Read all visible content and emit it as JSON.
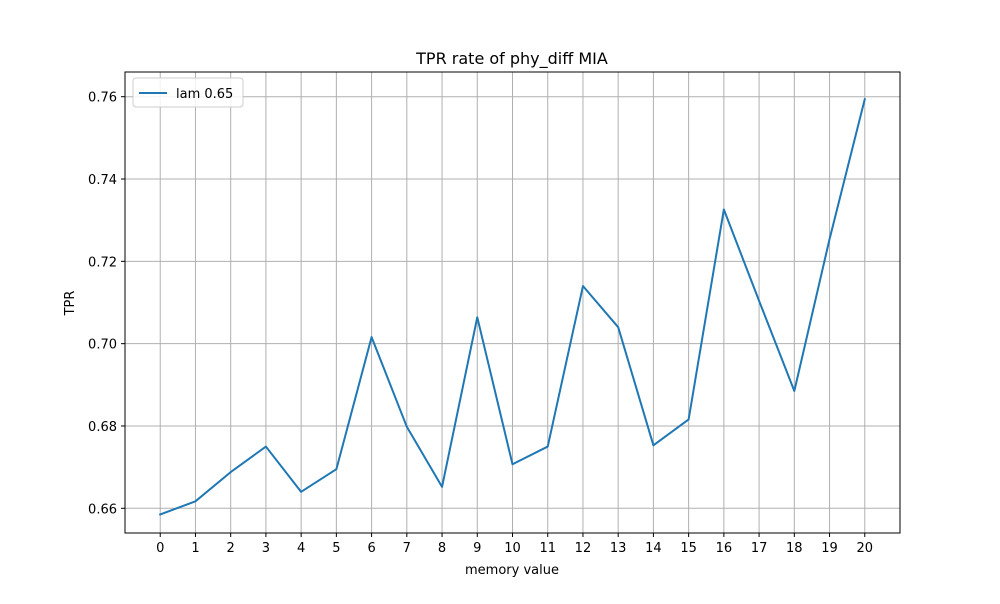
{
  "chart_data": {
    "type": "line",
    "title": "TPR rate of phy_diff MIA",
    "xlabel": "memory value",
    "ylabel": "TPR",
    "x": [
      0,
      1,
      2,
      3,
      4,
      5,
      6,
      7,
      8,
      9,
      10,
      11,
      12,
      13,
      14,
      15,
      16,
      17,
      18,
      19,
      20
    ],
    "xticks": [
      "0",
      "1",
      "2",
      "3",
      "4",
      "5",
      "6",
      "7",
      "8",
      "9",
      "10",
      "11",
      "12",
      "13",
      "14",
      "15",
      "16",
      "17",
      "18",
      "19",
      "20"
    ],
    "yticks": [
      "0.66",
      "0.68",
      "0.70",
      "0.72",
      "0.74",
      "0.76"
    ],
    "ytick_values": [
      0.66,
      0.68,
      0.7,
      0.72,
      0.74,
      0.76
    ],
    "xlim": [
      -1,
      21
    ],
    "ylim": [
      0.654,
      0.766
    ],
    "grid": true,
    "legend_position": "top-left",
    "series": [
      {
        "name": "lam 0.65",
        "color": "#1f77b4",
        "values": [
          0.6585,
          0.6617,
          0.6688,
          0.675,
          0.664,
          0.6695,
          0.7016,
          0.6798,
          0.6652,
          0.7064,
          0.6707,
          0.675,
          0.714,
          0.704,
          0.6753,
          0.6816,
          0.7326,
          0.7104,
          0.6885,
          0.7254,
          0.7594
        ]
      }
    ]
  }
}
